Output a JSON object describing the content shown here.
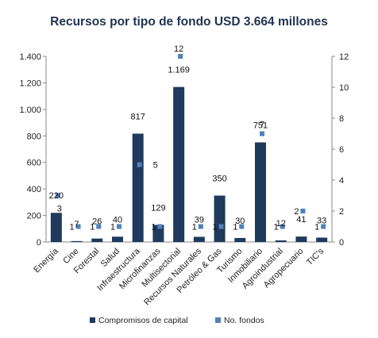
{
  "chart_data": {
    "type": "bar",
    "title": "Recursos por tipo de fondo USD 3.664 millones",
    "categories": [
      "Energía",
      "Cine",
      "Forestal",
      "Salud",
      "Infraestructura",
      "Microfinanzas",
      "Multisectorial",
      "Recursos Naturales",
      "Petróleo & Gas",
      "Turismo",
      "Inmobiliario",
      "Agroindustrial",
      "Agropecuario",
      "TIC's"
    ],
    "series": [
      {
        "name": "Compromisos de capital",
        "type": "bar",
        "axis": "left",
        "color": "#1f3a5c",
        "values": [
          220,
          7,
          26,
          40,
          817,
          129,
          1169,
          39,
          350,
          30,
          751,
          12,
          41,
          33
        ],
        "labels": [
          "220",
          "7",
          "26",
          "40",
          "817",
          "129",
          "1.169",
          "39",
          "350",
          "30",
          "751",
          "12",
          "41",
          "33"
        ]
      },
      {
        "name": "No. fondos",
        "type": "scatter",
        "axis": "right",
        "color": "#4f81bd",
        "values": [
          3,
          1,
          1,
          1,
          5,
          1,
          12,
          1,
          1,
          1,
          7,
          1,
          2,
          1
        ],
        "labels": [
          "3",
          "1",
          "1",
          "1",
          "5",
          "1",
          "12",
          "1",
          "1",
          "1",
          "7",
          "1",
          "2",
          "1"
        ]
      }
    ],
    "y_left": {
      "min": 0,
      "max": 1400,
      "ticks": [
        0,
        200,
        400,
        600,
        800,
        1000,
        1200,
        1400
      ],
      "tick_labels": [
        "0",
        "200",
        "400",
        "600",
        "800",
        "1.000",
        "1.200",
        "1.400"
      ]
    },
    "y_right": {
      "min": 0,
      "max": 12,
      "ticks": [
        0,
        2,
        4,
        6,
        8,
        10,
        12
      ],
      "tick_labels": [
        "0",
        "2",
        "4",
        "6",
        "8",
        "10",
        "12"
      ]
    },
    "grid": false,
    "legend": "bottom"
  }
}
